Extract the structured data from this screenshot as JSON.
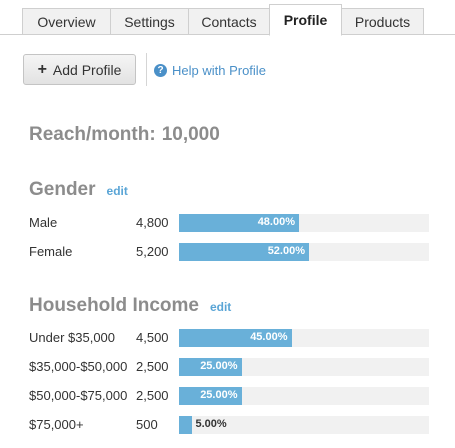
{
  "tabs": [
    {
      "label": "Overview",
      "active": false
    },
    {
      "label": "Settings",
      "active": false
    },
    {
      "label": "Contacts",
      "active": false
    },
    {
      "label": "Profile",
      "active": true
    },
    {
      "label": "Products",
      "active": false
    }
  ],
  "toolbar": {
    "add_profile_label": "Add Profile",
    "help_label": "Help with Profile",
    "icons": [
      "plus-icon",
      "help-question-icon"
    ]
  },
  "reach": {
    "label": "Reach/month:",
    "value": "10,000"
  },
  "gender": {
    "title": "Gender",
    "edit_label": "edit",
    "rows": [
      {
        "label": "Male",
        "count": "4,800",
        "percent_text": "48.00%",
        "percent": 48.0
      },
      {
        "label": "Female",
        "count": "5,200",
        "percent_text": "52.00%",
        "percent": 52.0
      }
    ]
  },
  "income": {
    "title": "Household Income",
    "edit_label": "edit",
    "rows": [
      {
        "label": "Under $35,000",
        "count": "4,500",
        "percent_text": "45.00%",
        "percent": 45.0
      },
      {
        "label": "$35,000-$50,000",
        "count": "2,500",
        "percent_text": "25.00%",
        "percent": 25.0
      },
      {
        "label": "$50,000-$75,000",
        "count": "2,500",
        "percent_text": "25.00%",
        "percent": 25.0
      },
      {
        "label": "$75,000+",
        "count": "500",
        "percent_text": "5.00%",
        "percent": 5.0
      }
    ]
  },
  "colors": {
    "bar": "#69b0d9",
    "track": "#f1f1f1",
    "link": "#4a90c8",
    "heading": "#8c8c8c"
  }
}
